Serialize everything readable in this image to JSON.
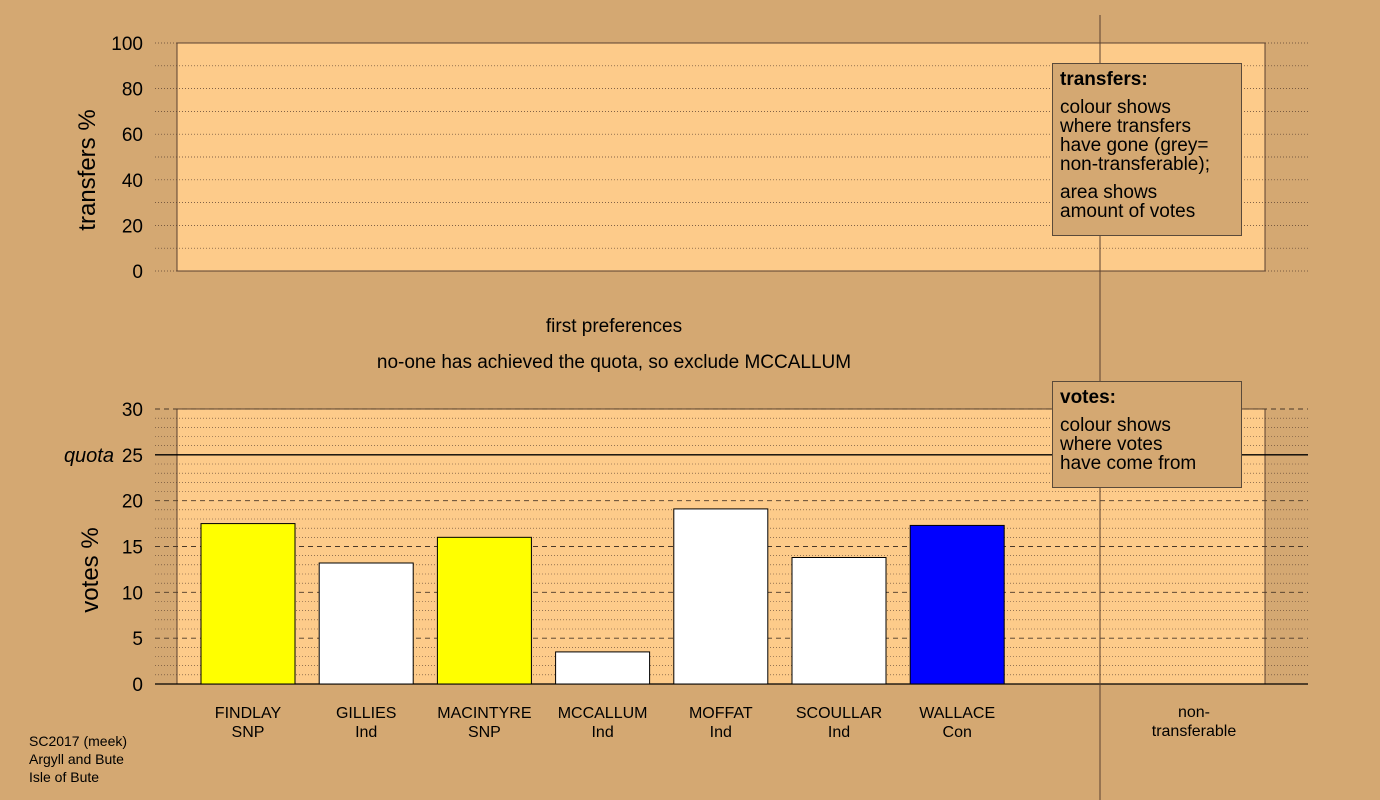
{
  "colors": {
    "background": "#d4a872",
    "plot_area": "#fdcb8a",
    "SNP": "#ffff00",
    "Ind": "#ffffff",
    "Con": "#0000ff",
    "non_transferable": "#a0a0a0"
  },
  "stage_label": "first preferences",
  "stage_note": "no-one has achieved the quota, so exclude MCCALLUM",
  "transfers_legend": {
    "title": "transfers:",
    "lines": [
      "colour shows",
      "where transfers",
      "have gone (grey=",
      "non-transferable);"
    ],
    "lines2": [
      "area shows",
      "amount of votes"
    ]
  },
  "votes_legend": {
    "title": "votes:",
    "lines": [
      "colour shows",
      "where votes",
      "have come from"
    ]
  },
  "footer": [
    "SC2017 (meek)",
    "Argyll and Bute",
    "Isle of Bute"
  ],
  "chart_data": [
    {
      "type": "bar",
      "title": "",
      "ylabel": "transfers %",
      "ylim": [
        0,
        100
      ],
      "yticks": [
        "0",
        "20",
        "40",
        "60",
        "80",
        "100"
      ],
      "series": []
    },
    {
      "type": "bar",
      "ylabel": "votes %",
      "ylim": [
        0,
        30
      ],
      "yticks": [
        "0",
        "5",
        "10",
        "15",
        "20",
        "25",
        "30"
      ],
      "quota": {
        "label": "quota",
        "value": 25
      },
      "categories": [
        {
          "name": "FINDLAY",
          "party": "SNP",
          "value": 17.5,
          "color": "#ffff00"
        },
        {
          "name": "GILLIES",
          "party": "Ind",
          "value": 13.2,
          "color": "#ffffff"
        },
        {
          "name": "MACINTYRE",
          "party": "SNP",
          "value": 16.0,
          "color": "#ffff00"
        },
        {
          "name": "MCCALLUM",
          "party": "Ind",
          "value": 3.5,
          "color": "#ffffff"
        },
        {
          "name": "MOFFAT",
          "party": "Ind",
          "value": 19.1,
          "color": "#ffffff"
        },
        {
          "name": "SCOULLAR",
          "party": "Ind",
          "value": 13.8,
          "color": "#ffffff"
        },
        {
          "name": "WALLACE",
          "party": "Con",
          "value": 17.3,
          "color": "#0000ff"
        }
      ],
      "extra_category": [
        "non-",
        "transferable"
      ]
    }
  ]
}
